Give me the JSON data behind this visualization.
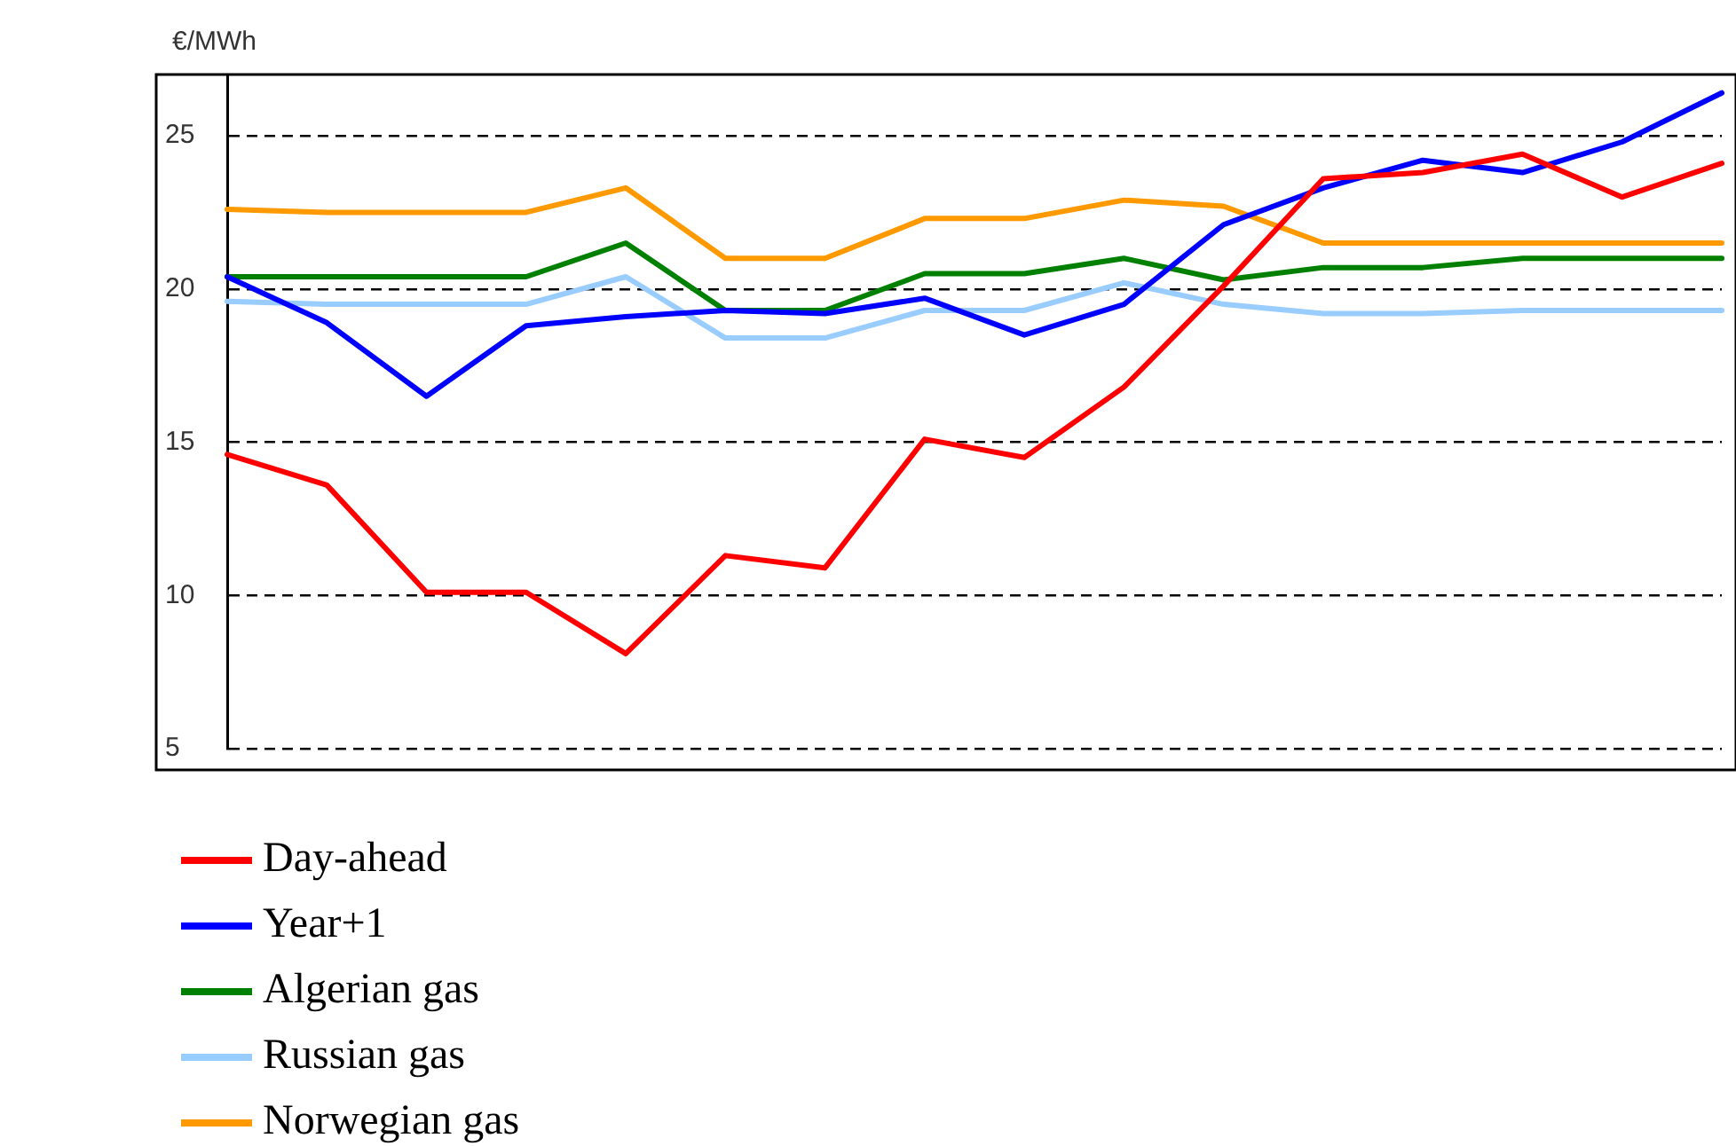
{
  "chart_data": {
    "type": "line",
    "ylabel": "€/MWh",
    "categories": [
      null,
      null,
      null,
      null,
      null,
      null,
      null,
      null,
      null,
      null,
      null,
      null,
      null,
      null,
      null,
      null
    ],
    "series": [
      {
        "name": "Day-ahead",
        "color": "#ff0000",
        "values": [
          14.6,
          13.6,
          10.1,
          10.1,
          8.1,
          11.3,
          10.9,
          15.1,
          14.5,
          16.8,
          20.1,
          23.6,
          23.8,
          24.4,
          23.0,
          24.1
        ]
      },
      {
        "name": "Year+1",
        "color": "#0000ff",
        "values": [
          20.4,
          18.9,
          16.5,
          18.8,
          19.1,
          19.3,
          19.2,
          19.7,
          18.5,
          19.5,
          22.1,
          23.3,
          24.2,
          23.8,
          24.8,
          26.4
        ]
      },
      {
        "name": "Algerian gas",
        "color": "#008000",
        "values": [
          20.4,
          20.4,
          20.4,
          20.4,
          21.5,
          19.3,
          19.3,
          20.5,
          20.5,
          21.0,
          20.3,
          20.7,
          20.7,
          21.0,
          21.0,
          21.0
        ]
      },
      {
        "name": "Russian gas",
        "color": "#99ccff",
        "values": [
          19.6,
          19.5,
          19.5,
          19.5,
          20.4,
          18.4,
          18.4,
          19.3,
          19.3,
          20.2,
          19.5,
          19.2,
          19.2,
          19.3,
          19.3,
          19.3
        ]
      },
      {
        "name": "Norwegian gas",
        "color": "#ff9900",
        "values": [
          22.6,
          22.5,
          22.5,
          22.5,
          23.3,
          21.0,
          21.0,
          22.3,
          22.3,
          22.9,
          22.7,
          21.5,
          21.5,
          21.5,
          21.5,
          21.5
        ]
      }
    ],
    "ylim": [
      5,
      27
    ],
    "yticks": [
      5,
      10,
      15,
      20,
      25
    ],
    "grid": "y",
    "legend": "bottom",
    "tick_labels": "y",
    "marker": "none",
    "line_style": "solid"
  }
}
